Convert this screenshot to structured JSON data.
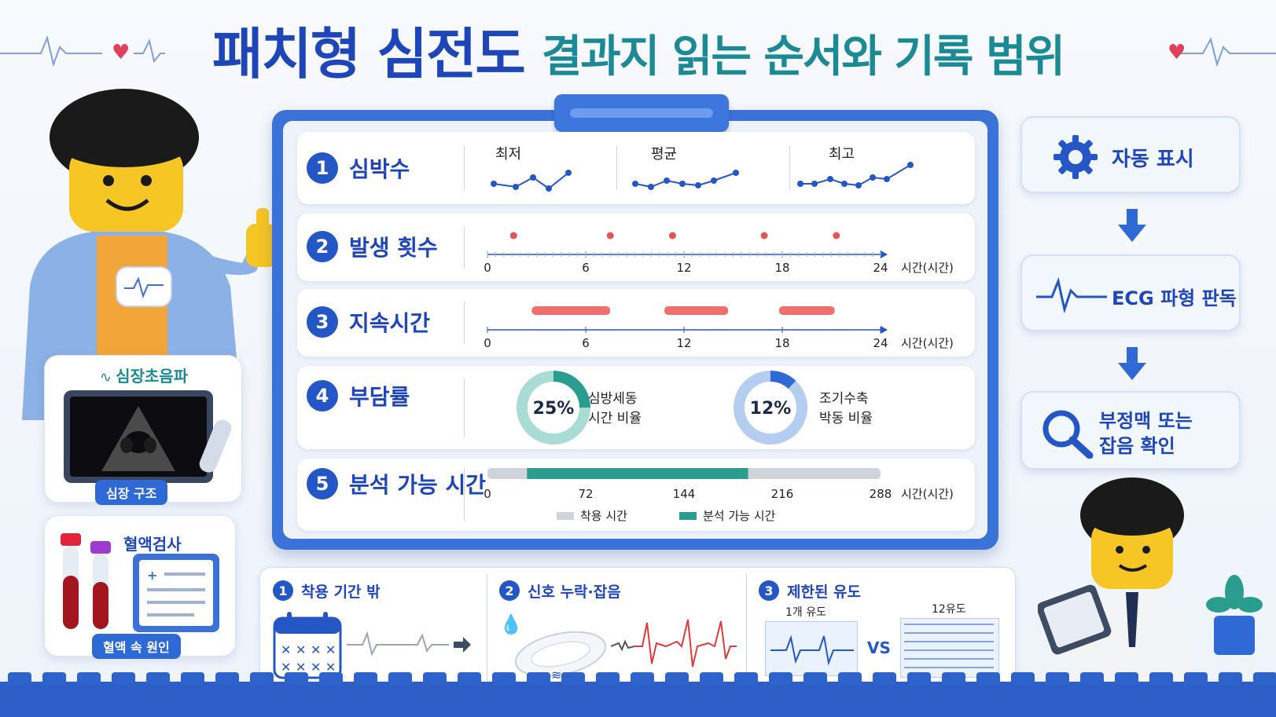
{
  "title": {
    "main": "패치형 심전도",
    "sub": "결과지 읽는 순서와 기록 범위"
  },
  "left": {
    "echo_card": {
      "title": "심장초음파",
      "tag": "심장 구조"
    },
    "blood_card": {
      "title": "혈액검사",
      "tag": "혈액 속 원인"
    }
  },
  "rows": [
    {
      "num": "1",
      "label": "심박수",
      "sub_labels": [
        "최저",
        "평균",
        "최고"
      ]
    },
    {
      "num": "2",
      "label": "발생 횟수"
    },
    {
      "num": "3",
      "label": "지속시간"
    },
    {
      "num": "4",
      "label": "부담률"
    },
    {
      "num": "5",
      "label": "분석 가능 시간"
    }
  ],
  "chart_data": [
    {
      "type": "scatter",
      "title": "발생 횟수",
      "xlabel": "시간(시간)",
      "xlim": [
        0,
        24
      ],
      "x_ticks": [
        "0",
        "6",
        "12",
        "18",
        "24"
      ],
      "x": [
        1.6,
        7.5,
        11.3,
        16.9,
        21.3
      ]
    },
    {
      "type": "bar",
      "title": "지속시간",
      "xlabel": "시간(시간)",
      "xlim": [
        0,
        24
      ],
      "x_ticks": [
        "0",
        "6",
        "12",
        "18",
        "24"
      ],
      "intervals": [
        [
          2.7,
          7.5
        ],
        [
          10.8,
          14.7
        ],
        [
          17.8,
          21.2
        ]
      ]
    },
    {
      "type": "pie",
      "title": "부담률",
      "items": [
        {
          "value": 25,
          "label": "25%",
          "caption_line1": "심방세동",
          "caption_line2": "시간 비율",
          "color": "#2a9d8f"
        },
        {
          "value": 12,
          "label": "12%",
          "caption_line1": "조기수축",
          "caption_line2": "박동 비율",
          "color": "#2f69d6"
        }
      ]
    },
    {
      "type": "bar",
      "title": "분석 가능 시간",
      "xlabel": "시간(시간)",
      "xlim": [
        0,
        288
      ],
      "x_ticks": [
        "0",
        "72",
        "144",
        "216",
        "288"
      ],
      "wear": [
        0,
        288
      ],
      "analyzable": [
        29,
        191
      ],
      "legend": [
        "착용 시간",
        "분석 가능 시간"
      ]
    }
  ],
  "axis_unit": "시간(시간)",
  "flow": {
    "step1": "자동 표시",
    "step2": "ECG 파형 판독",
    "step3_line1": "부정맥 또는",
    "step3_line2": "잡음 확인"
  },
  "bottom": {
    "items": [
      {
        "num": "1",
        "label": "착용 기간 밖"
      },
      {
        "num": "2",
        "label": "신호 누락·잡음"
      },
      {
        "num": "3",
        "label": "제한된 유도",
        "lead1": "1개 유도",
        "vs": "VS",
        "lead12": "12유도"
      }
    ]
  },
  "colors": {
    "primary": "#1f46b8",
    "teal": "#1c8a95",
    "accent_red": "#e25555",
    "bar_red": "#ef6f6f"
  }
}
